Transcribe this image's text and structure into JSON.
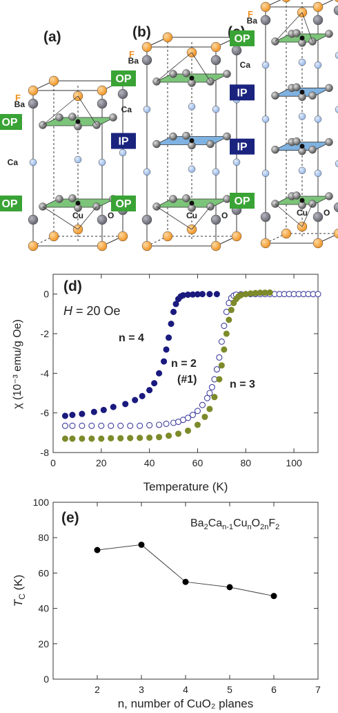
{
  "structures": {
    "panels": [
      {
        "label": "(a)",
        "n": 2,
        "layers": [
          "OP",
          "OP"
        ]
      },
      {
        "label": "(b)",
        "n": 3,
        "layers": [
          "OP",
          "IP",
          "OP"
        ]
      },
      {
        "label": "(c)",
        "n": 4,
        "layers": [
          "OP",
          "IP",
          "IP",
          "OP"
        ]
      }
    ],
    "atom_labels": {
      "F": "F",
      "Ba": "Ba",
      "Ca": "Ca",
      "Cu": "Cu",
      "O": "O"
    },
    "colors": {
      "OP": "#3aa335",
      "IP": "#1a237e",
      "F": "#f29b2a",
      "Ba": "#7a7a85",
      "Ca": "#a9c4ee",
      "Cu": "#555555",
      "plane_OP": "#7cc47a",
      "plane_IP": "#7fb2e0"
    }
  },
  "chart_data": [
    {
      "type": "scatter",
      "panel_label": "(d)",
      "field_label": "H = 20 Oe",
      "ylabel": "χ (10⁻³ emu/g Oe)",
      "xlabel": "Temperature (K)",
      "xlim": [
        0,
        110
      ],
      "ylim": [
        -8,
        1
      ],
      "xticks": [
        0,
        20,
        40,
        60,
        80,
        100
      ],
      "yticks": [
        0,
        -2,
        -4,
        -6,
        -8
      ],
      "series": [
        {
          "name": "n = 4",
          "color": "#1a1a7e",
          "filled": true,
          "x": [
            5,
            8,
            12,
            17,
            21,
            25,
            30,
            34,
            37,
            40,
            42,
            44,
            46,
            47,
            48,
            49,
            50,
            51,
            52,
            53,
            54,
            56,
            58,
            60,
            62,
            65,
            68
          ],
          "y": [
            -6.15,
            -6.1,
            -6.05,
            -5.95,
            -5.85,
            -5.7,
            -5.55,
            -5.35,
            -5.15,
            -4.85,
            -4.5,
            -4.0,
            -3.4,
            -2.8,
            -2.2,
            -1.5,
            -0.9,
            -0.5,
            -0.25,
            -0.12,
            -0.06,
            -0.03,
            -0.02,
            -0.01,
            0.0,
            0.0,
            0.0
          ]
        },
        {
          "name": "n = 2",
          "annotation": "(#1)",
          "color": "#3d3d9e",
          "filled": false,
          "x": [
            5,
            8,
            12,
            16,
            20,
            24,
            28,
            32,
            36,
            40,
            44,
            47,
            50,
            52,
            54,
            56,
            58,
            60,
            62,
            64,
            65,
            66,
            67,
            68,
            69,
            70,
            71,
            72,
            73,
            74,
            75,
            76,
            78,
            80,
            82,
            84,
            86,
            88,
            90,
            92,
            94,
            96,
            98,
            100,
            102,
            104,
            106,
            108,
            110
          ],
          "y": [
            -6.65,
            -6.65,
            -6.65,
            -6.65,
            -6.65,
            -6.65,
            -6.65,
            -6.65,
            -6.65,
            -6.62,
            -6.6,
            -6.55,
            -6.5,
            -6.45,
            -6.35,
            -6.25,
            -6.1,
            -5.9,
            -5.6,
            -5.25,
            -5.0,
            -4.7,
            -4.3,
            -3.8,
            -3.2,
            -2.4,
            -1.6,
            -0.9,
            -0.45,
            -0.2,
            -0.08,
            -0.03,
            -0.01,
            0.0,
            0.0,
            0.0,
            0.0,
            0.0,
            0.0,
            0.0,
            0.0,
            0.0,
            0.0,
            0.0,
            0.0,
            0.0,
            0.0,
            0.0,
            0.0
          ]
        },
        {
          "name": "n = 3",
          "color": "#7d8a2a",
          "filled": true,
          "x": [
            5,
            8,
            12,
            16,
            20,
            24,
            28,
            32,
            36,
            40,
            44,
            48,
            52,
            56,
            60,
            63,
            65,
            67,
            69,
            70,
            71,
            72,
            73,
            74,
            75,
            76,
            77,
            78,
            80,
            82,
            84,
            86,
            88,
            90
          ],
          "y": [
            -7.3,
            -7.3,
            -7.3,
            -7.3,
            -7.3,
            -7.28,
            -7.28,
            -7.27,
            -7.26,
            -7.25,
            -7.22,
            -7.15,
            -7.05,
            -6.9,
            -6.6,
            -6.2,
            -5.8,
            -5.2,
            -4.3,
            -3.6,
            -2.8,
            -2.0,
            -1.3,
            -0.8,
            -0.45,
            -0.25,
            -0.12,
            -0.05,
            0.0,
            0.03,
            0.05,
            0.07,
            0.07,
            0.08
          ]
        }
      ],
      "annotations": [
        "n = 4",
        "n = 2",
        "(#1)",
        "n = 3"
      ]
    },
    {
      "type": "line",
      "panel_label": "(e)",
      "formula": "Ba2Can-1CunO2nF2",
      "xlabel": "n, number of CuO₂ planes",
      "ylabel": "Tc (K)",
      "xlim": [
        1,
        7
      ],
      "ylim": [
        0,
        100
      ],
      "xticks": [
        2,
        3,
        4,
        5,
        6,
        7
      ],
      "yticks": [
        0,
        20,
        40,
        60,
        80,
        100
      ],
      "series": [
        {
          "x": [
            2,
            3,
            4,
            5,
            6
          ],
          "y": [
            73,
            76,
            55,
            52,
            47
          ]
        }
      ]
    }
  ]
}
